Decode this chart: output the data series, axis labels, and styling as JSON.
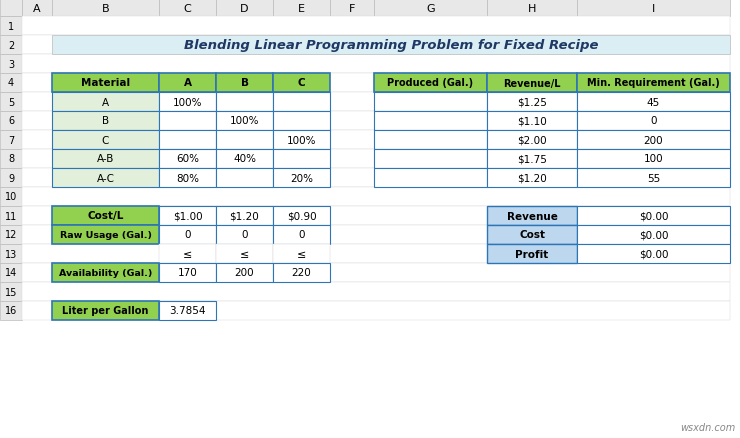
{
  "title": "Blending Linear Programming Problem for Fixed Recipe",
  "watermark": "wsxdn.com",
  "left_table": {
    "headers": [
      "Material",
      "A",
      "B",
      "C"
    ],
    "rows": [
      [
        "A",
        "100%",
        "",
        ""
      ],
      [
        "B",
        "",
        "100%",
        ""
      ],
      [
        "C",
        "",
        "",
        "100%"
      ],
      [
        "A-B",
        "60%",
        "40%",
        ""
      ],
      [
        "A-C",
        "80%",
        "",
        "20%"
      ]
    ]
  },
  "right_table": {
    "headers": [
      "Produced (Gal.)",
      "Revenue/L",
      "Min. Requirement (Gal.)"
    ],
    "rows": [
      [
        "",
        "$1.25",
        "45"
      ],
      [
        "",
        "$1.10",
        "0"
      ],
      [
        "",
        "$2.00",
        "200"
      ],
      [
        "",
        "$1.75",
        "100"
      ],
      [
        "",
        "$1.20",
        "55"
      ]
    ]
  },
  "bottom_left_table": {
    "row1_label": "Cost/L",
    "row1_values": [
      "$1.00",
      "$1.20",
      "$0.90"
    ],
    "row2_label": "Raw Usage (Gal.)",
    "row2_values": [
      "0",
      "0",
      "0"
    ],
    "row3_values": [
      "≤",
      "≤",
      "≤"
    ],
    "row4_label": "Availability (Gal.)",
    "row4_values": [
      "170",
      "200",
      "220"
    ]
  },
  "bottom_right_table": {
    "rows": [
      [
        "Revenue",
        "$0.00"
      ],
      [
        "Cost",
        "$0.00"
      ],
      [
        "Profit",
        "$0.00"
      ]
    ]
  },
  "liter_table": {
    "label": "Liter per Gallon",
    "value": "3.7854"
  },
  "colors": {
    "green_header": "#92D050",
    "light_green_body": "#E2EFDA",
    "blue_header": "#BDD7EE",
    "title_bg": "#DAEEF3",
    "excel_col_row_bg": "#E8E8E8",
    "border_dark": "#2E75B6",
    "border_light": "#BBBBBB",
    "title_text": "#1F3864",
    "white": "#FFFFFF"
  }
}
